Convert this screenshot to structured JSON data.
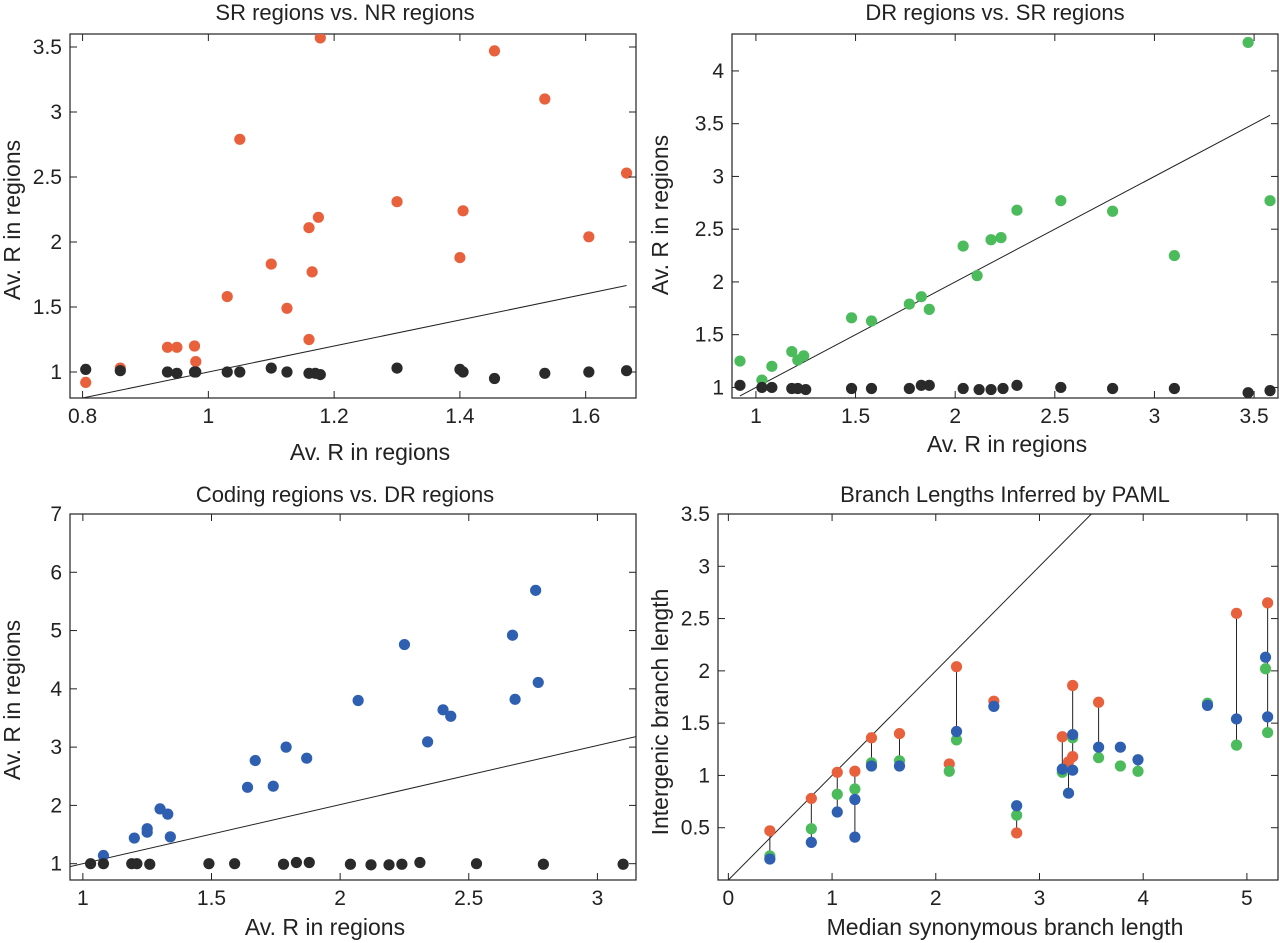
{
  "colors": {
    "orange": "#e8603c",
    "green": "#4cbb5c",
    "blue": "#2f5fb0",
    "black": "#2a2a2a",
    "axis": "#222222"
  },
  "chart_data": [
    {
      "type": "scatter",
      "title": "SR regions vs. NR regions",
      "xlabel": "Av. R in regions",
      "ylabel": "Av. R in regions",
      "xlim": [
        0.78,
        1.68
      ],
      "ylim": [
        0.8,
        3.6
      ],
      "xticks": [
        0.8,
        1,
        1.2,
        1.4,
        1.6
      ],
      "xtick_labels": [
        "0.8",
        "1",
        "1.2",
        "1.4",
        "1.6"
      ],
      "yticks": [
        1,
        1.5,
        2,
        2.5,
        3,
        3.5
      ],
      "ytick_labels": [
        "1",
        "1.5",
        "2",
        "2.5",
        "3",
        "3.5"
      ],
      "grid": false,
      "reference_line": [
        [
          0.8,
          0.8
        ],
        [
          1.665,
          1.665
        ]
      ],
      "series": [
        {
          "color": "orange",
          "points": [
            [
              0.805,
              0.92
            ],
            [
              0.86,
              1.03
            ],
            [
              0.935,
              1.19
            ],
            [
              0.95,
              1.19
            ],
            [
              0.978,
              1.2
            ],
            [
              0.98,
              1.08
            ],
            [
              1.03,
              1.58
            ],
            [
              1.05,
              2.79
            ],
            [
              1.1,
              1.83
            ],
            [
              1.125,
              1.49
            ],
            [
              1.16,
              2.11
            ],
            [
              1.16,
              1.25
            ],
            [
              1.165,
              1.77
            ],
            [
              1.175,
              2.19
            ],
            [
              1.178,
              3.57
            ],
            [
              1.3,
              2.31
            ],
            [
              1.4,
              1.88
            ],
            [
              1.405,
              2.24
            ],
            [
              1.455,
              3.47
            ],
            [
              1.535,
              3.1
            ],
            [
              1.605,
              2.04
            ],
            [
              1.665,
              2.53
            ]
          ]
        },
        {
          "color": "black",
          "points": [
            [
              0.805,
              1.02
            ],
            [
              0.86,
              1.01
            ],
            [
              0.935,
              1.0
            ],
            [
              0.95,
              0.99
            ],
            [
              0.978,
              1.0
            ],
            [
              0.98,
              1.0
            ],
            [
              1.03,
              1.0
            ],
            [
              1.05,
              1.0
            ],
            [
              1.1,
              1.03
            ],
            [
              1.125,
              1.0
            ],
            [
              1.16,
              0.99
            ],
            [
              1.17,
              0.99
            ],
            [
              1.178,
              0.98
            ],
            [
              1.3,
              1.03
            ],
            [
              1.4,
              1.02
            ],
            [
              1.405,
              1.0
            ],
            [
              1.455,
              0.95
            ],
            [
              1.535,
              0.99
            ],
            [
              1.605,
              1.0
            ],
            [
              1.665,
              1.01
            ]
          ]
        }
      ]
    },
    {
      "type": "scatter",
      "title": "DR regions vs. SR regions",
      "xlabel": "Av. R in regions",
      "ylabel": "Av. R in regions",
      "xlim": [
        0.88,
        3.62
      ],
      "ylim": [
        0.9,
        4.35
      ],
      "xticks": [
        1,
        1.5,
        2,
        2.5,
        3,
        3.5
      ],
      "xtick_labels": [
        "1",
        "1.5",
        "2",
        "2.5",
        "3",
        "3.5"
      ],
      "yticks": [
        1,
        1.5,
        2,
        2.5,
        3,
        3.5,
        4
      ],
      "ytick_labels": [
        "1",
        "1.5",
        "2",
        "2.5",
        "3",
        "3.5",
        "4"
      ],
      "grid": false,
      "reference_line": [
        [
          0.92,
          0.92
        ],
        [
          3.58,
          3.58
        ]
      ],
      "series": [
        {
          "color": "green",
          "points": [
            [
              0.92,
              1.25
            ],
            [
              1.03,
              1.07
            ],
            [
              1.08,
              1.2
            ],
            [
              1.18,
              1.34
            ],
            [
              1.21,
              1.26
            ],
            [
              1.24,
              1.3
            ],
            [
              1.48,
              1.66
            ],
            [
              1.58,
              1.63
            ],
            [
              1.77,
              1.79
            ],
            [
              1.83,
              1.86
            ],
            [
              1.87,
              1.74
            ],
            [
              2.04,
              2.34
            ],
            [
              2.11,
              2.06
            ],
            [
              2.18,
              2.4
            ],
            [
              2.23,
              2.42
            ],
            [
              2.31,
              2.68
            ],
            [
              2.53,
              2.77
            ],
            [
              2.79,
              2.67
            ],
            [
              3.1,
              2.25
            ],
            [
              3.47,
              4.27
            ],
            [
              3.58,
              2.77
            ]
          ]
        },
        {
          "color": "black",
          "points": [
            [
              0.92,
              1.02
            ],
            [
              1.03,
              1.0
            ],
            [
              1.08,
              1.0
            ],
            [
              1.18,
              0.99
            ],
            [
              1.21,
              0.99
            ],
            [
              1.25,
              0.98
            ],
            [
              1.48,
              0.99
            ],
            [
              1.58,
              0.99
            ],
            [
              1.77,
              0.99
            ],
            [
              1.83,
              1.02
            ],
            [
              1.87,
              1.02
            ],
            [
              2.04,
              0.99
            ],
            [
              2.12,
              0.98
            ],
            [
              2.18,
              0.98
            ],
            [
              2.24,
              0.99
            ],
            [
              2.31,
              1.02
            ],
            [
              2.53,
              1.0
            ],
            [
              2.79,
              0.99
            ],
            [
              3.1,
              0.99
            ],
            [
              3.47,
              0.95
            ],
            [
              3.58,
              0.97
            ]
          ]
        }
      ]
    },
    {
      "type": "scatter",
      "title": "Coding regions vs. DR regions",
      "xlabel": "Av. R in regions",
      "ylabel": "Av. R in regions",
      "xlim": [
        0.95,
        3.15
      ],
      "ylim": [
        0.72,
        7.0
      ],
      "xticks": [
        1,
        1.5,
        2,
        2.5,
        3
      ],
      "xtick_labels": [
        "1",
        "1.5",
        "2",
        "2.5",
        "3"
      ],
      "yticks": [
        1,
        2,
        3,
        4,
        5,
        6,
        7
      ],
      "ytick_labels": [
        "1",
        "2",
        "3",
        "4",
        "5",
        "6",
        "7"
      ],
      "grid": false,
      "reference_line": [
        [
          0.95,
          0.95
        ],
        [
          3.15,
          3.18
        ]
      ],
      "series": [
        {
          "color": "blue",
          "points": [
            [
              1.08,
              1.14
            ],
            [
              1.2,
              1.44
            ],
            [
              1.25,
              1.54
            ],
            [
              1.25,
              1.6
            ],
            [
              1.3,
              1.94
            ],
            [
              1.33,
              1.85
            ],
            [
              1.34,
              1.46
            ],
            [
              1.64,
              2.31
            ],
            [
              1.67,
              2.77
            ],
            [
              1.74,
              2.33
            ],
            [
              1.79,
              3.0
            ],
            [
              1.87,
              2.81
            ],
            [
              2.07,
              3.8
            ],
            [
              2.25,
              4.76
            ],
            [
              2.34,
              3.09
            ],
            [
              2.4,
              3.64
            ],
            [
              2.43,
              3.53
            ],
            [
              2.67,
              4.92
            ],
            [
              2.68,
              3.82
            ],
            [
              2.76,
              5.69
            ],
            [
              2.77,
              4.11
            ]
          ]
        },
        {
          "color": "black",
          "points": [
            [
              1.03,
              1.0
            ],
            [
              1.08,
              1.0
            ],
            [
              1.19,
              1.0
            ],
            [
              1.21,
              1.0
            ],
            [
              1.26,
              0.99
            ],
            [
              1.49,
              1.0
            ],
            [
              1.59,
              1.0
            ],
            [
              1.78,
              0.99
            ],
            [
              1.83,
              1.02
            ],
            [
              1.88,
              1.02
            ],
            [
              2.04,
              0.99
            ],
            [
              2.12,
              0.98
            ],
            [
              2.19,
              0.98
            ],
            [
              2.24,
              0.99
            ],
            [
              2.31,
              1.02
            ],
            [
              2.53,
              1.0
            ],
            [
              2.79,
              0.99
            ],
            [
              3.1,
              0.99
            ]
          ]
        }
      ]
    },
    {
      "type": "scatter",
      "title": "Branch Lengths Inferred by PAML",
      "xlabel": "Median synonymous branch length",
      "ylabel": "Intergenic branch length",
      "xlim": [
        -0.1,
        5.3
      ],
      "ylim": [
        0.0,
        3.5
      ],
      "xticks": [
        0,
        1,
        2,
        3,
        4,
        5
      ],
      "xtick_labels": [
        "0",
        "1",
        "2",
        "3",
        "4",
        "5"
      ],
      "yticks": [
        0.5,
        1,
        1.5,
        2,
        2.5,
        3,
        3.5
      ],
      "ytick_labels": [
        "0.5",
        "1",
        "1.5",
        "2",
        "2.5",
        "3",
        "3.5"
      ],
      "grid": false,
      "reference_line": [
        [
          0.0,
          0.0
        ],
        [
          3.5,
          3.5
        ]
      ],
      "series": [
        {
          "color": "orange",
          "points": [
            [
              0.4,
              0.47
            ],
            [
              0.8,
              0.78
            ],
            [
              1.05,
              1.03
            ],
            [
              1.22,
              1.04
            ],
            [
              1.38,
              1.36
            ],
            [
              1.65,
              1.4
            ],
            [
              2.13,
              1.11
            ],
            [
              2.2,
              2.04
            ],
            [
              2.56,
              1.71
            ],
            [
              2.78,
              0.45
            ],
            [
              3.22,
              1.37
            ],
            [
              3.28,
              1.13
            ],
            [
              3.32,
              1.86
            ],
            [
              3.32,
              1.18
            ],
            [
              3.57,
              1.7
            ],
            [
              4.9,
              2.55
            ],
            [
              5.2,
              2.65
            ]
          ]
        },
        {
          "color": "green",
          "points": [
            [
              0.4,
              0.23
            ],
            [
              0.8,
              0.49
            ],
            [
              1.05,
              0.82
            ],
            [
              1.22,
              0.87
            ],
            [
              1.38,
              1.12
            ],
            [
              1.65,
              1.14
            ],
            [
              2.13,
              1.04
            ],
            [
              2.2,
              1.34
            ],
            [
              2.78,
              0.62
            ],
            [
              3.22,
              1.03
            ],
            [
              3.32,
              1.36
            ],
            [
              3.57,
              1.17
            ],
            [
              3.78,
              1.09
            ],
            [
              3.95,
              1.04
            ],
            [
              4.62,
              1.69
            ],
            [
              4.9,
              1.29
            ],
            [
              5.18,
              2.02
            ],
            [
              5.2,
              1.41
            ]
          ]
        },
        {
          "color": "blue",
          "points": [
            [
              0.4,
              0.2
            ],
            [
              0.8,
              0.36
            ],
            [
              1.05,
              0.65
            ],
            [
              1.22,
              0.77
            ],
            [
              1.22,
              0.41
            ],
            [
              1.38,
              1.09
            ],
            [
              1.65,
              1.09
            ],
            [
              2.2,
              1.42
            ],
            [
              2.56,
              1.66
            ],
            [
              2.78,
              0.71
            ],
            [
              3.22,
              1.06
            ],
            [
              3.28,
              0.83
            ],
            [
              3.32,
              1.39
            ],
            [
              3.32,
              1.05
            ],
            [
              3.57,
              1.27
            ],
            [
              3.78,
              1.27
            ],
            [
              3.95,
              1.15
            ],
            [
              4.62,
              1.67
            ],
            [
              4.9,
              1.54
            ],
            [
              5.18,
              2.13
            ],
            [
              5.2,
              1.56
            ]
          ]
        }
      ],
      "connectors": [
        [
          0.4,
          0.2,
          0.47
        ],
        [
          0.8,
          0.36,
          0.78
        ],
        [
          1.05,
          0.65,
          1.03
        ],
        [
          1.22,
          0.41,
          1.04
        ],
        [
          1.38,
          1.09,
          1.36
        ],
        [
          1.65,
          1.09,
          1.4
        ],
        [
          2.2,
          1.34,
          2.04
        ],
        [
          2.78,
          0.45,
          0.71
        ],
        [
          3.22,
          1.03,
          1.37
        ],
        [
          3.28,
          0.83,
          1.13
        ],
        [
          3.32,
          1.05,
          1.86
        ],
        [
          3.57,
          1.17,
          1.7
        ],
        [
          3.95,
          1.04,
          1.15
        ],
        [
          4.9,
          1.29,
          2.55
        ],
        [
          5.2,
          1.41,
          2.65
        ]
      ]
    }
  ]
}
